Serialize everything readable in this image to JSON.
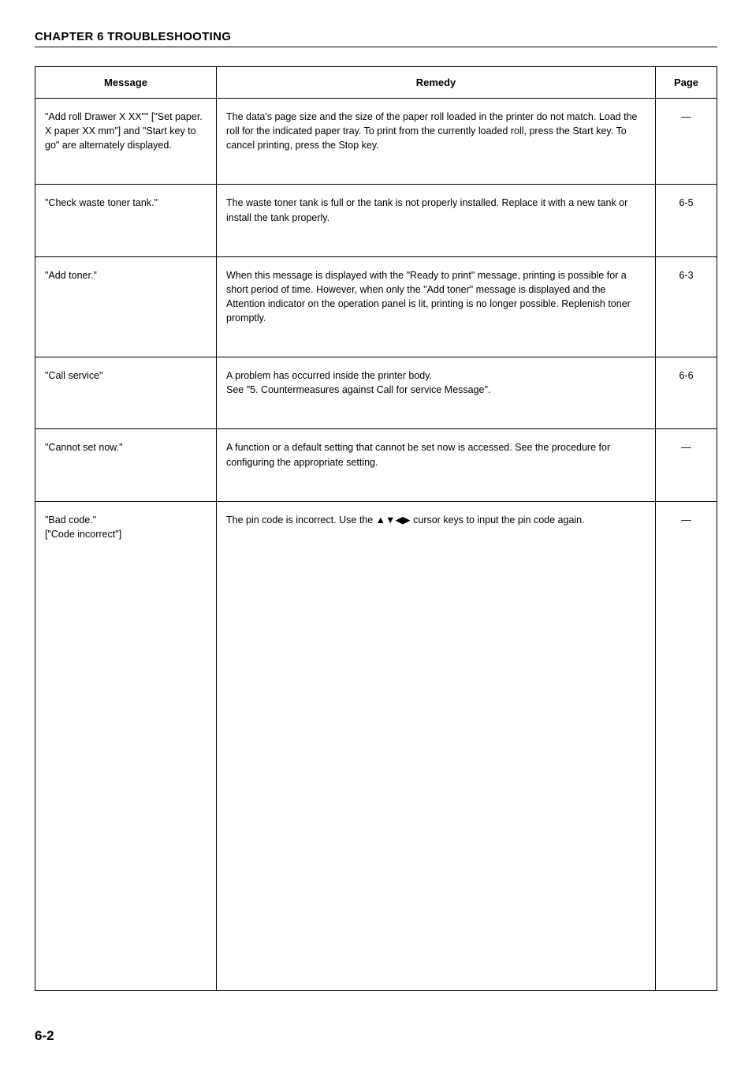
{
  "chapter": {
    "title": "CHAPTER 6  TROUBLESHOOTING"
  },
  "table": {
    "headers": {
      "message": "Message",
      "remedy": "Remedy",
      "page": "Page"
    },
    "rows": [
      {
        "message": "\"Add roll Drawer X XX\"\" [\"Set paper. X paper XX mm\"] and \"Start key to go\" are alternately displayed.",
        "remedy": "The data's page size and the size of the paper roll loaded in the printer do not match. Load the roll for the indicated paper tray. To print from the currently loaded roll, press the Start key. To cancel printing, press the Stop key.",
        "page": "—"
      },
      {
        "message": "\"Check waste toner tank.\"",
        "remedy": "The waste toner tank is full or the tank is not properly installed. Replace it with a new tank or install the tank properly.",
        "page": "6-5"
      },
      {
        "message": "\"Add toner.\"",
        "remedy": "When this message is displayed with the \"Ready to print\" message, printing is possible for a short period of time. However, when only the \"Add toner\" message is displayed and the Attention indicator on the operation panel is lit, printing is no longer possible. Replenish toner promptly.",
        "page": "6-3"
      },
      {
        "message": "\"Call service\"",
        "remedy": "A problem has occurred inside the printer body.\nSee \"5. Countermeasures against Call for service Message\".",
        "page": "6-6"
      },
      {
        "message": "\"Cannot set now.\"",
        "remedy": "A function or a default setting that cannot be set now is accessed. See the procedure for configuring the appropriate setting.",
        "page": "—"
      },
      {
        "message": "\"Bad code.\"\n[\"Code incorrect\"]",
        "remedy": "The pin code is incorrect. Use the ▲▼◀▶ cursor keys to input the pin code again.",
        "page": "—"
      }
    ]
  },
  "footer": {
    "page_number": "6-2"
  },
  "styles": {
    "font_family": "Arial, Helvetica, sans-serif",
    "text_color": "#000000",
    "background_color": "#ffffff",
    "border_color": "#000000",
    "title_fontsize": 15,
    "header_fontsize": 13,
    "cell_fontsize": 12.5,
    "page_num_fontsize": 17,
    "col_message_width": 230,
    "col_page_width": 78
  }
}
